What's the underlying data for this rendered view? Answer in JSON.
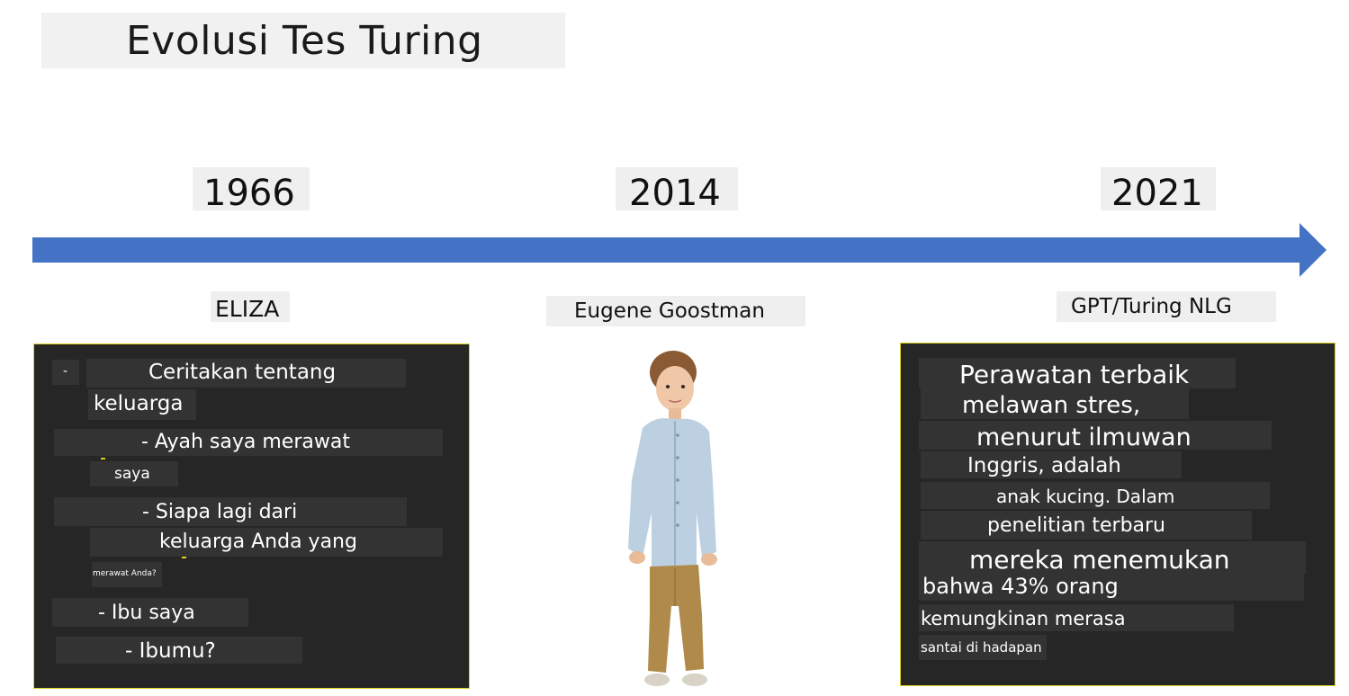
{
  "title": "Evolusi Tes Turing",
  "timeline": {
    "years": [
      "1966",
      "2014",
      "2021"
    ],
    "labels": [
      "ELIZA",
      "Eugene Goostman",
      "GPT/Turing NLG"
    ]
  },
  "eliza_dialogue": [
    "-",
    "Ceritakan tentang",
    "keluarga",
    "- Ayah saya merawat",
    "saya",
    "- Siapa lagi dari",
    "keluarga Anda yang",
    "merawat Anda?",
    "- Ibu saya",
    "- Ibumu?"
  ],
  "gpt_text": [
    "Perawatan terbaik",
    "melawan stres,",
    "menurut ilmuwan",
    "Inggris, adalah",
    "anak kucing. Dalam",
    "penelitian terbaru",
    "mereka menemukan",
    "bahwa 43% orang",
    "kemungkinan merasa",
    "santai di hadapan"
  ],
  "colors": {
    "arrow": "#4472c4",
    "panel_bg": "#262626",
    "panel_border": "#d8d21a",
    "label_bg": "#efefef"
  },
  "icons": {
    "child_photo": "boy-illustration"
  }
}
